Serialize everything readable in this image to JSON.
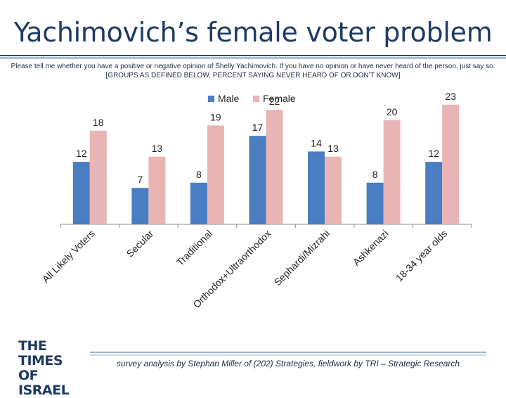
{
  "title": "Yachimovich’s female voter problem",
  "question": "Please tell me whether you have a positive or negative opinion of Shelly Yachimovich. If you have no opinion or have never heard of the person, just say so. [GROUPS AS DEFINED BELOW, PERCENT SAYING NEVER HEARD OF OR DON’T KNOW]",
  "logo": {
    "line1": "THE TIMES",
    "line2": "OF ISRAEL"
  },
  "footer": "survey analysis by Stephan Miller of (202) Strategies, fieldwork by TRI – Strategic Research",
  "chart_data": {
    "type": "bar",
    "title": "",
    "xlabel": "",
    "ylabel": "",
    "ylim": [
      0,
      25
    ],
    "grid": false,
    "legend_position": "top",
    "categories": [
      "All Likely Voters",
      "Secular",
      "Traditional",
      "Orthodox+Ultraorthodox",
      "Sephardi/Mizrahi",
      "Ashkenazi",
      "18-34 year olds"
    ],
    "series": [
      {
        "name": "Male",
        "values": [
          12,
          7,
          8,
          17,
          14,
          8,
          12
        ],
        "color": "#4a7dc2"
      },
      {
        "name": "Female",
        "values": [
          18,
          13,
          19,
          22,
          13,
          20,
          23
        ],
        "color": "#e8b5b4"
      }
    ]
  }
}
